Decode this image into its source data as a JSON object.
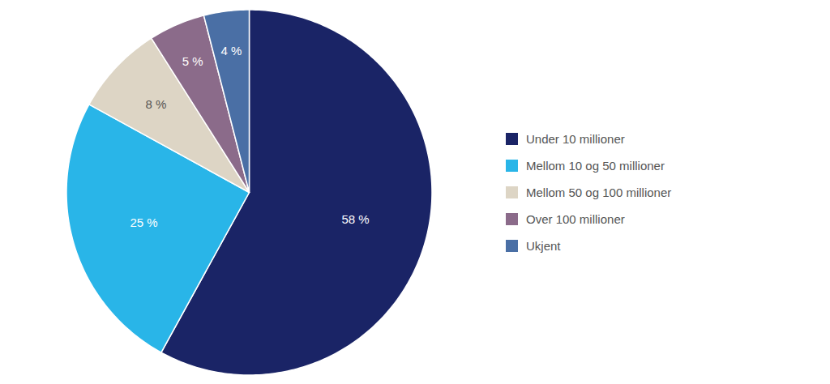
{
  "chart_data": {
    "type": "pie",
    "categories": [
      "Under 10 millioner",
      "Mellom 10 og 50 millioner",
      "Mellom 50 og 100 millioner",
      "Over 100 millioner",
      "Ukjent"
    ],
    "values": [
      58,
      25,
      8,
      5,
      4
    ],
    "value_labels": [
      "58 %",
      "25 %",
      "8 %",
      "5 %",
      "4 %"
    ],
    "colors": [
      "#1a2466",
      "#29b5e8",
      "#ddd5c5",
      "#8b6b8a",
      "#4a6fa5"
    ],
    "data_labels": true,
    "legend": "right"
  }
}
